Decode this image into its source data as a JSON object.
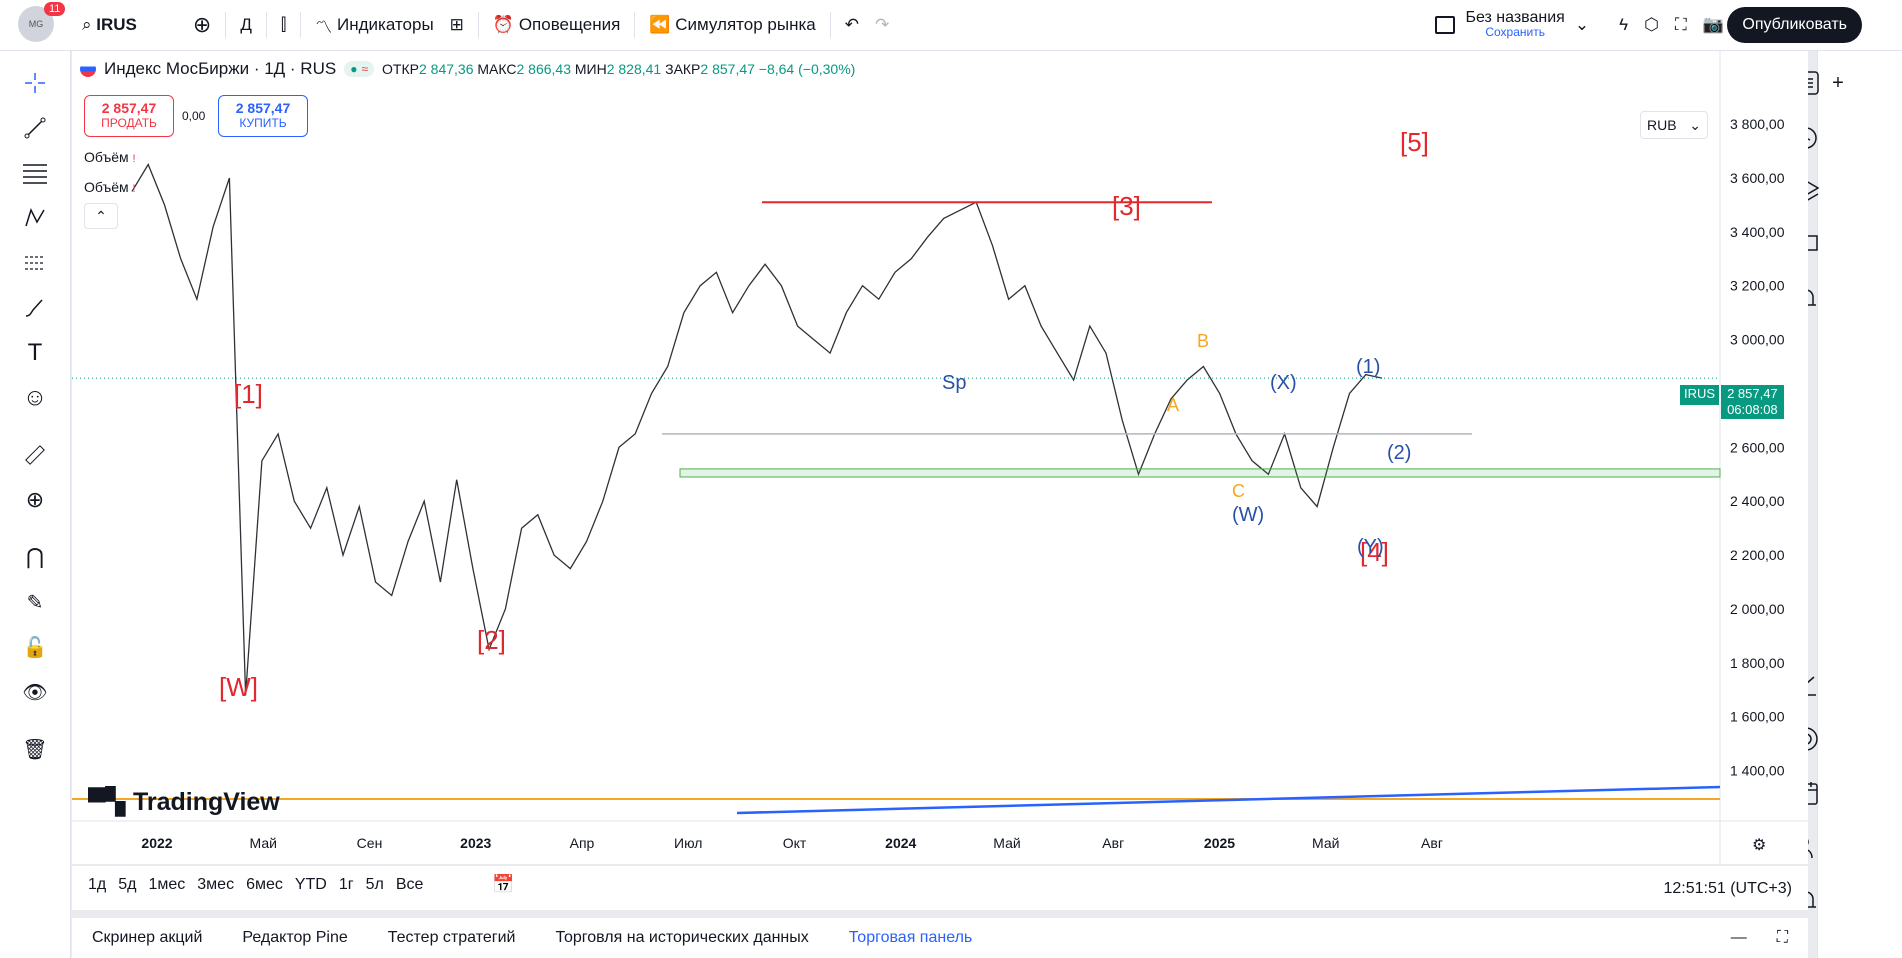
{
  "header": {
    "badge_count": "11",
    "symbol": "IRUS",
    "interval": "Д",
    "indicators_label": "Индикаторы",
    "alerts_label": "Оповещения",
    "replay_label": "Симулятор рынка",
    "layout_name": "Без названия",
    "layout_status": "Сохранить",
    "publish_label": "Опубликовать"
  },
  "legend": {
    "title": "Индекс МосБиржи · 1Д · RUS",
    "open_label": "ОТКР",
    "open": "2 847,36",
    "high_label": "МАКС",
    "high": "2 866,43",
    "low_label": "МИН",
    "low": "2 828,41",
    "close_label": "ЗАКР",
    "close": "2 857,47",
    "change": "−8,64 (−0,30%)",
    "sell_price": "2 857,47",
    "sell_label": "ПРОДАТЬ",
    "spread": "0,00",
    "buy_price": "2 857,47",
    "buy_label": "КУПИТЬ",
    "vol1": "Объём",
    "vol2": "Объём",
    "currency": "RUB",
    "price_tag_symbol": "IRUS",
    "price_tag_price": "2 857,47",
    "price_tag_time": "06:08:08"
  },
  "brand": "TradingView",
  "bottom": {
    "ranges": [
      "1д",
      "5д",
      "1мес",
      "3мес",
      "6мес",
      "YTD",
      "1г",
      "5л",
      "Все"
    ],
    "clock": "12:51:51 (UTC+3)",
    "tabs": [
      "Скринер акций",
      "Редактор Pine",
      "Тестер стратегий",
      "Торговля на исторических данных",
      "Торговая панель"
    ]
  },
  "chart_data": {
    "type": "line",
    "y_ticks": [
      "3 800,00",
      "3 600,00",
      "3 400,00",
      "3 200,00",
      "3 000,00",
      "2 600,00",
      "2 400,00",
      "2 200,00",
      "2 000,00",
      "1 800,00",
      "1 600,00",
      "1 400,00"
    ],
    "y_tick_values": [
      3800,
      3600,
      3400,
      3200,
      3000,
      2600,
      2400,
      2200,
      2000,
      1800,
      1600,
      1400
    ],
    "ylim": [
      1250,
      3960
    ],
    "x_ticks": [
      "2022",
      "Май",
      "Сен",
      "2023",
      "Апр",
      "Июл",
      "Окт",
      "2024",
      "Май",
      "Авг",
      "2025",
      "Май",
      "Авг"
    ],
    "series": [
      {
        "values": [
          3550,
          3650,
          3500,
          3300,
          3150,
          3420,
          3600,
          1680,
          2550,
          2650,
          2400,
          2300,
          2450,
          2200,
          2380,
          2100,
          2050,
          2250,
          2400,
          2100,
          2480,
          2150,
          1850,
          2000,
          2300,
          2350,
          2200,
          2150,
          2250,
          2400,
          2600,
          2650,
          2800,
          2900,
          3100,
          3200,
          3250,
          3100,
          3200,
          3280,
          3200,
          3050,
          3000,
          2950,
          3100,
          3200,
          3150,
          3250,
          3300,
          3380,
          3450,
          3480,
          3510,
          3350,
          3150,
          3200,
          3050,
          2950,
          2850,
          3050,
          2950,
          2700,
          2500,
          2650,
          2780,
          2850,
          2900,
          2800,
          2650,
          2550,
          2500,
          2650,
          2450,
          2380,
          2600,
          2800,
          2870,
          2857
        ]
      }
    ],
    "annotations": [
      "[W]",
      "[1]",
      "[2]",
      "[3]",
      "[4]",
      "[5]",
      "Sp",
      "A",
      "B",
      "C",
      "(W)",
      "(X)",
      "(Y)",
      "(1)",
      "(2)"
    ]
  }
}
